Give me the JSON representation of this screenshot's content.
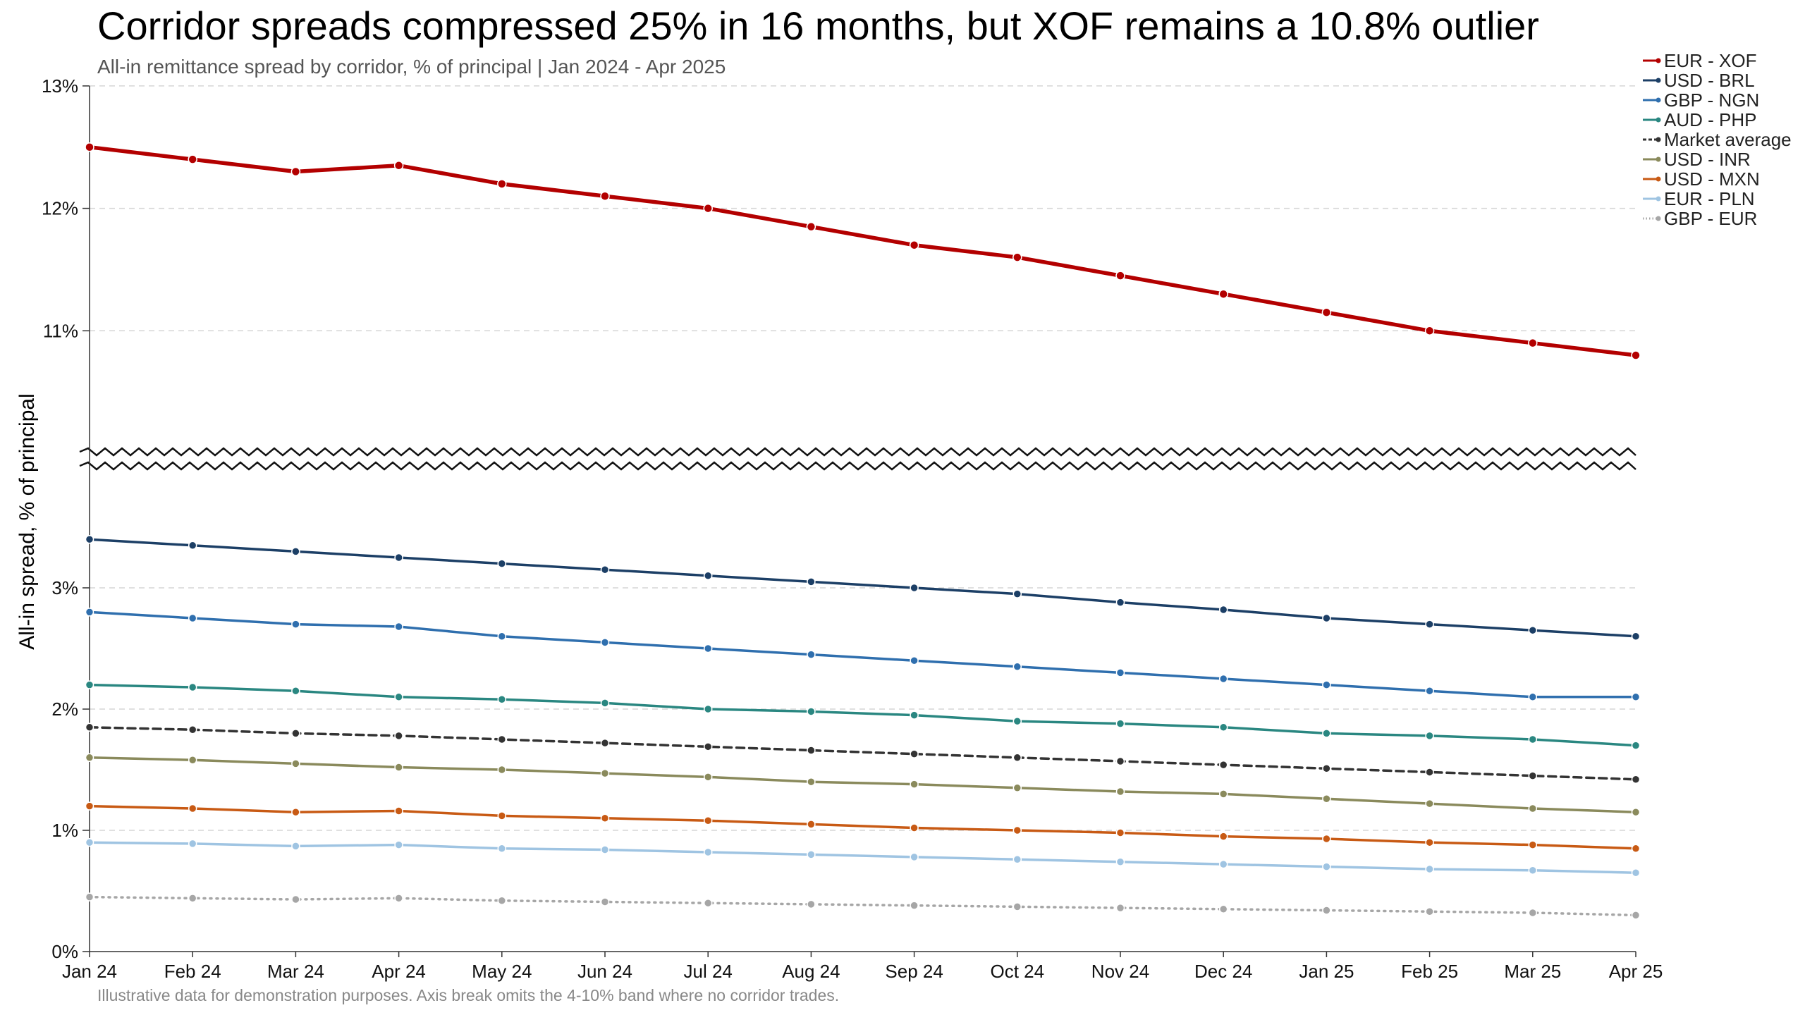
{
  "title": "Corridor spreads compressed 25% in 16 months, but XOF remains a 10.8% outlier",
  "subtitle": "All-in remittance spread by corridor, % of principal | Jan 2024 - Apr 2025",
  "footnote": "Illustrative data for demonstration purposes. Axis break omits the 4-10% band where no corridor trades.",
  "chart_data": {
    "type": "line",
    "title": "Corridor spreads compressed 25% in 16 months, but XOF remains a 10.8% outlier",
    "subtitle": "All-in remittance spread by corridor, % of principal | Jan 2024 - Apr 2025",
    "xlabel": "",
    "ylabel": "All-in spread, % of principal",
    "categories": [
      "Jan 24",
      "Feb 24",
      "Mar 24",
      "Apr 24",
      "May 24",
      "Jun 24",
      "Jul 24",
      "Aug 24",
      "Sep 24",
      "Oct 24",
      "Nov 24",
      "Dec 24",
      "Jan 25",
      "Feb 25",
      "Mar 25",
      "Apr 25"
    ],
    "y_segments": [
      {
        "range": [
          0,
          4
        ],
        "ticks": [
          {
            "value": 0,
            "label": "0%"
          },
          {
            "value": 1,
            "label": "1%"
          },
          {
            "value": 2,
            "label": "2%"
          },
          {
            "value": 3,
            "label": "3%"
          }
        ]
      },
      {
        "range": [
          10,
          13
        ],
        "ticks": [
          {
            "value": 11,
            "label": "11%"
          },
          {
            "value": 12,
            "label": "12%"
          },
          {
            "value": 13,
            "label": "13%"
          }
        ]
      }
    ],
    "axis_break": [
      4,
      10
    ],
    "grid": true,
    "legend_position": "top-right",
    "series": [
      {
        "name": "EUR - XOF",
        "color": "#b30000",
        "style": "solid",
        "emphasis": true,
        "values": [
          12.5,
          12.4,
          12.3,
          12.35,
          12.2,
          12.1,
          12.0,
          11.85,
          11.7,
          11.6,
          11.45,
          11.3,
          11.15,
          11.0,
          10.9,
          10.8
        ]
      },
      {
        "name": "USD - BRL",
        "color": "#1c3f66",
        "style": "solid",
        "values": [
          3.4,
          3.35,
          3.3,
          3.25,
          3.2,
          3.15,
          3.1,
          3.05,
          3.0,
          2.95,
          2.88,
          2.82,
          2.75,
          2.7,
          2.65,
          2.6
        ]
      },
      {
        "name": "GBP - NGN",
        "color": "#2f6fae",
        "style": "solid",
        "values": [
          2.8,
          2.75,
          2.7,
          2.68,
          2.6,
          2.55,
          2.5,
          2.45,
          2.4,
          2.35,
          2.3,
          2.25,
          2.2,
          2.15,
          2.1,
          2.1
        ]
      },
      {
        "name": "AUD - PHP",
        "color": "#2a8781",
        "style": "solid",
        "values": [
          2.2,
          2.18,
          2.15,
          2.1,
          2.08,
          2.05,
          2.0,
          1.98,
          1.95,
          1.9,
          1.88,
          1.85,
          1.8,
          1.78,
          1.75,
          1.7
        ]
      },
      {
        "name": "Market average",
        "color": "#333333",
        "style": "dashed",
        "values": [
          1.85,
          1.83,
          1.8,
          1.78,
          1.75,
          1.72,
          1.69,
          1.66,
          1.63,
          1.6,
          1.57,
          1.54,
          1.51,
          1.48,
          1.45,
          1.42
        ]
      },
      {
        "name": "USD - INR",
        "color": "#8a8a5c",
        "style": "solid",
        "values": [
          1.6,
          1.58,
          1.55,
          1.52,
          1.5,
          1.47,
          1.44,
          1.4,
          1.38,
          1.35,
          1.32,
          1.3,
          1.26,
          1.22,
          1.18,
          1.15
        ]
      },
      {
        "name": "USD - MXN",
        "color": "#c85a14",
        "style": "solid",
        "values": [
          1.2,
          1.18,
          1.15,
          1.16,
          1.12,
          1.1,
          1.08,
          1.05,
          1.02,
          1.0,
          0.98,
          0.95,
          0.93,
          0.9,
          0.88,
          0.85
        ]
      },
      {
        "name": "EUR - PLN",
        "color": "#9fc4e2",
        "style": "solid",
        "values": [
          0.9,
          0.89,
          0.87,
          0.88,
          0.85,
          0.84,
          0.82,
          0.8,
          0.78,
          0.76,
          0.74,
          0.72,
          0.7,
          0.68,
          0.67,
          0.65
        ]
      },
      {
        "name": "GBP - EUR",
        "color": "#a6a6a6",
        "style": "dotted",
        "values": [
          0.45,
          0.44,
          0.43,
          0.44,
          0.42,
          0.41,
          0.4,
          0.39,
          0.38,
          0.37,
          0.36,
          0.35,
          0.34,
          0.33,
          0.32,
          0.3
        ]
      }
    ]
  }
}
